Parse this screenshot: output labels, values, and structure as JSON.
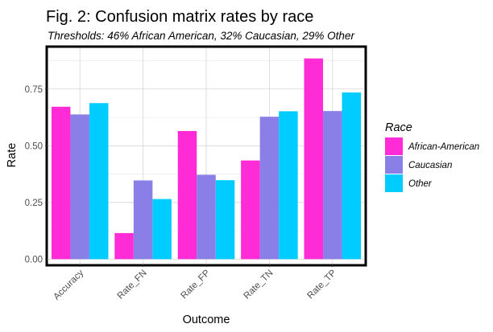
{
  "chart_data": {
    "type": "bar",
    "title": "Fig. 2: Confusion matrix rates by race",
    "subtitle": "Thresholds: 46% African American, 32% Caucasian, 29% Other",
    "xlabel": "Outcome",
    "ylabel": "Rate",
    "categories": [
      "Accuracy",
      "Rate_FN",
      "Rate_FP",
      "Rate_TN",
      "Rate_TP"
    ],
    "series": [
      {
        "name": "African-American",
        "color": "#ff2bd6",
        "values": [
          0.672,
          0.115,
          0.565,
          0.435,
          0.885
        ]
      },
      {
        "name": "Caucasian",
        "color": "#8a7fe6",
        "values": [
          0.638,
          0.347,
          0.372,
          0.628,
          0.653
        ]
      },
      {
        "name": "Other",
        "color": "#00ccff",
        "values": [
          0.688,
          0.265,
          0.348,
          0.652,
          0.735
        ]
      }
    ],
    "ylim": [
      -0.02,
      0.93
    ],
    "yticks": [
      0.0,
      0.25,
      0.5,
      0.75
    ],
    "ytick_labels": [
      "0.00",
      "0.25",
      "0.50",
      "0.75"
    ],
    "grid": true,
    "legend": {
      "title": "Race",
      "position": "right"
    }
  }
}
